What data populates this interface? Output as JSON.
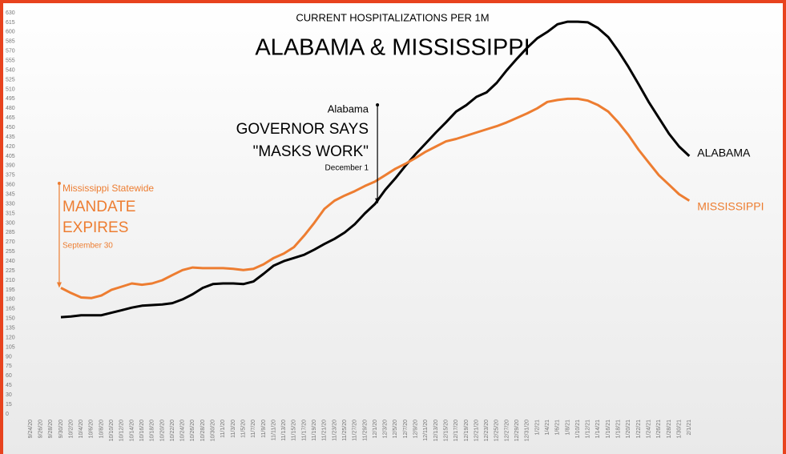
{
  "chart_data": {
    "type": "line",
    "subtitle": "CURRENT HOSPITALIZATIONS PER 1M",
    "title": "ALABAMA & MISSISSIPPI",
    "categories": [
      "9/24/20",
      "9/26/20",
      "9/28/20",
      "9/30/20",
      "10/2/20",
      "10/4/20",
      "10/6/20",
      "10/8/20",
      "10/10/20",
      "10/12/20",
      "10/14/20",
      "10/16/20",
      "10/18/20",
      "10/20/20",
      "10/22/20",
      "10/24/20",
      "10/26/20",
      "10/28/20",
      "10/30/20",
      "11/1/20",
      "11/3/20",
      "11/5/20",
      "11/7/20",
      "11/9/20",
      "11/11/20",
      "11/13/20",
      "11/15/20",
      "11/17/20",
      "11/19/20",
      "11/21/20",
      "11/23/20",
      "11/25/20",
      "11/27/20",
      "11/29/20",
      "12/1/20",
      "12/3/20",
      "12/5/20",
      "12/7/20",
      "12/9/20",
      "12/11/20",
      "12/13/20",
      "12/15/20",
      "12/17/20",
      "12/19/20",
      "12/21/20",
      "12/23/20",
      "12/25/20",
      "12/27/20",
      "12/29/20",
      "12/31/20",
      "1/2/21",
      "1/4/21",
      "1/6/21",
      "1/8/21",
      "1/10/21",
      "1/12/21",
      "1/14/21",
      "1/16/21",
      "1/18/21",
      "1/20/21",
      "1/22/21",
      "1/24/21",
      "1/26/21",
      "1/28/21",
      "1/30/21",
      "2/1/21"
    ],
    "series": [
      {
        "name": "ALABAMA",
        "color": "#000000",
        "values": [
          null,
          null,
          null,
          152,
          153,
          155,
          155,
          155,
          159,
          163,
          167,
          170,
          171,
          172,
          174,
          180,
          188,
          198,
          204,
          205,
          205,
          204,
          208,
          220,
          233,
          240,
          245,
          250,
          258,
          267,
          275,
          285,
          298,
          315,
          330,
          352,
          370,
          390,
          408,
          425,
          442,
          458,
          475,
          485,
          498,
          505,
          520,
          540,
          558,
          575,
          590,
          600,
          612,
          616,
          616,
          615,
          606,
          592,
          570,
          545,
          518,
          490,
          465,
          440,
          420,
          405
        ]
      },
      {
        "name": "MISSISSIPPI",
        "color": "#ed7d31",
        "values": [
          null,
          null,
          null,
          198,
          190,
          183,
          182,
          186,
          195,
          200,
          205,
          203,
          205,
          210,
          218,
          226,
          230,
          229,
          229,
          229,
          228,
          226,
          228,
          235,
          245,
          252,
          262,
          280,
          300,
          322,
          335,
          343,
          350,
          358,
          365,
          375,
          385,
          393,
          402,
          412,
          420,
          428,
          432,
          437,
          442,
          447,
          452,
          458,
          465,
          472,
          480,
          490,
          493,
          495,
          495,
          492,
          485,
          475,
          458,
          438,
          415,
          395,
          375,
          360,
          345,
          335
        ]
      }
    ],
    "annotations": [
      {
        "color": "#ed7d31",
        "lines": [
          "Mississippi Statewide",
          "MANDATE",
          "EXPIRES",
          "September 30"
        ]
      },
      {
        "color": "#000000",
        "lines": [
          "Alabama",
          "GOVERNOR SAYS",
          "\"MASKS WORK\"",
          "December 1"
        ]
      }
    ],
    "ylim": [
      0,
      630
    ],
    "yticks": [
      0,
      15,
      30,
      45,
      60,
      75,
      90,
      105,
      120,
      135,
      150,
      165,
      180,
      195,
      210,
      225,
      240,
      255,
      270,
      285,
      300,
      315,
      330,
      345,
      360,
      375,
      390,
      405,
      420,
      435,
      450,
      465,
      480,
      495,
      510,
      525,
      540,
      555,
      570,
      585,
      600,
      615,
      630
    ],
    "grid": false
  }
}
